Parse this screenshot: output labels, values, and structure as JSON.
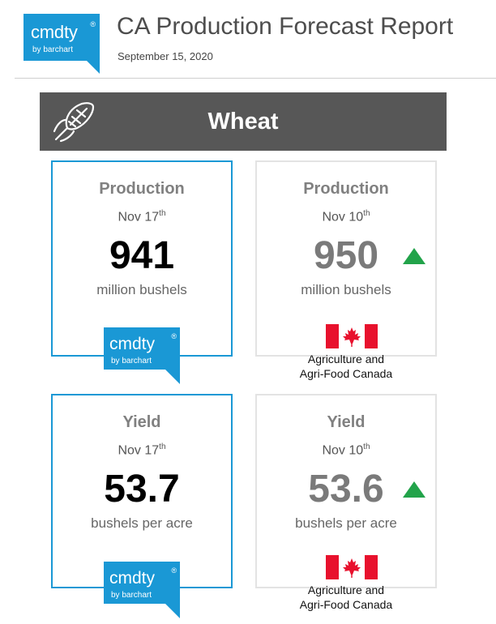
{
  "header": {
    "logo_wordmark": "cmdty",
    "logo_registered": "®",
    "logo_byline": "by barchart",
    "title": "CA Production Forecast Report",
    "date": "September 15, 2020"
  },
  "banner": {
    "icon": "wheat-icon",
    "title": "Wheat"
  },
  "cards": {
    "production_cmdty": {
      "label": "Production",
      "date_main": "Nov 17",
      "date_suffix": "th",
      "value": "941",
      "unit": "million bushels",
      "logo_wordmark": "cmdty",
      "logo_registered": "®",
      "logo_byline": "by barchart"
    },
    "production_agri": {
      "label": "Production",
      "date_main": "Nov 10",
      "date_suffix": "th",
      "value": "950",
      "unit": "million bushels",
      "trend_icon": "up-arrow-icon",
      "source_line1": "Agriculture and",
      "source_line2": "Agri-Food Canada"
    },
    "yield_cmdty": {
      "label": "Yield",
      "date_main": "Nov 17",
      "date_suffix": "th",
      "value": "53.7",
      "unit": "bushels per acre",
      "logo_wordmark": "cmdty",
      "logo_registered": "®",
      "logo_byline": "by barchart"
    },
    "yield_agri": {
      "label": "Yield",
      "date_main": "Nov 10",
      "date_suffix": "th",
      "value": "53.6",
      "unit": "bushels per acre",
      "trend_icon": "up-arrow-icon",
      "source_line1": "Agriculture and",
      "source_line2": "Agri-Food Canada"
    }
  },
  "colors": {
    "brand_blue": "#1a98d5",
    "banner_gray": "#575757",
    "trend_green": "#22a34a",
    "flag_red": "#e8112d"
  }
}
